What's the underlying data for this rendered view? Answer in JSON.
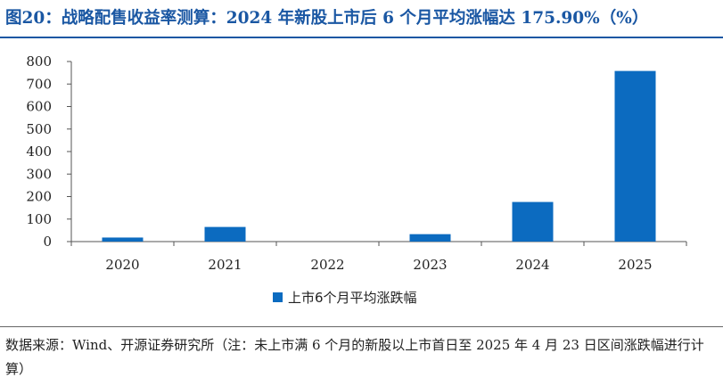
{
  "title": "图20：战略配售收益率测算：2024 年新股上市后 6 个月平均涨幅达 175.90%（%）",
  "source": "数据来源：Wind、开源证券研究所（注：未上市满 6 个月的新股以上市首日至 2025 年 4 月 23 日区间涨跌幅进行计算）",
  "colors": {
    "bar": "#0c6bc0",
    "title": "#1a57a3"
  },
  "chart_data": {
    "type": "bar",
    "categories": [
      "2020",
      "2021",
      "2022",
      "2023",
      "2024",
      "2025"
    ],
    "series": [
      {
        "name": "上市6个月平均涨跌幅",
        "values": [
          18,
          65,
          0,
          33,
          176,
          758
        ]
      }
    ],
    "yticks": [
      "0",
      "100",
      "200",
      "300",
      "400",
      "500",
      "600",
      "700",
      "800"
    ],
    "ylim": [
      0,
      800
    ],
    "grid": false,
    "legend": "bottom"
  }
}
